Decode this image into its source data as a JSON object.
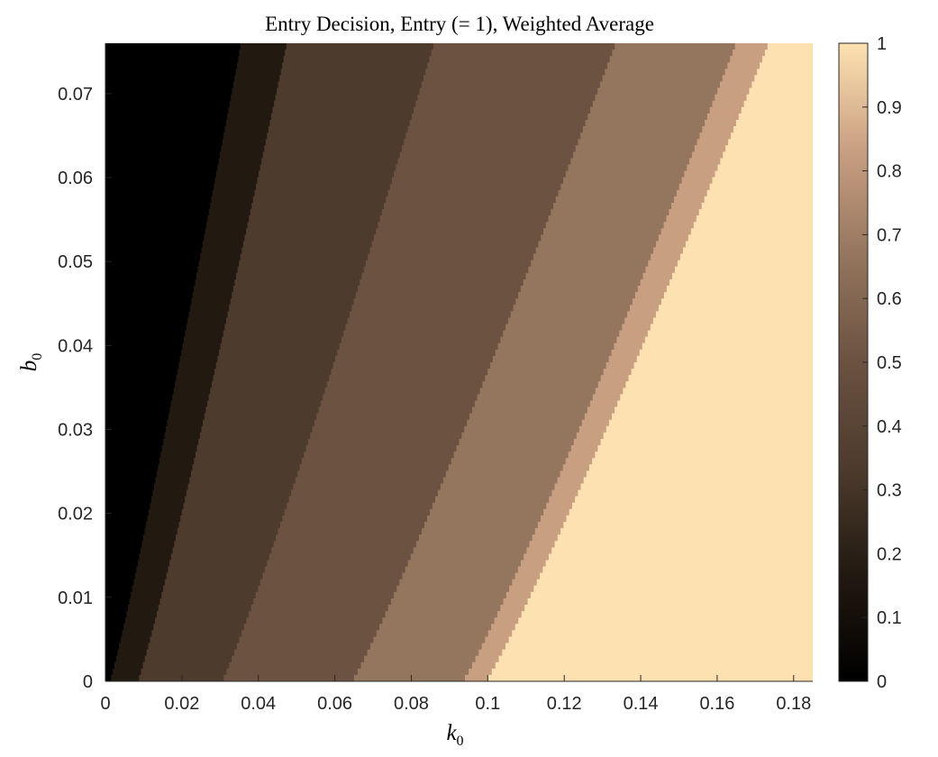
{
  "chart_data": {
    "type": "heatmap",
    "title": "Entry Decision, Entry (= 1), Weighted Average",
    "xlabel": {
      "base": "k",
      "sub": "0"
    },
    "ylabel": {
      "base": "b",
      "sub": "0"
    },
    "xlim": [
      0,
      0.185
    ],
    "ylim": [
      0,
      0.076
    ],
    "x_ticks": [
      {
        "value": 0,
        "label": "0"
      },
      {
        "value": 0.02,
        "label": "0.02"
      },
      {
        "value": 0.04,
        "label": "0.04"
      },
      {
        "value": 0.06,
        "label": "0.06"
      },
      {
        "value": 0.08,
        "label": "0.08"
      },
      {
        "value": 0.1,
        "label": "0.1"
      },
      {
        "value": 0.12,
        "label": "0.12"
      },
      {
        "value": 0.14,
        "label": "0.14"
      },
      {
        "value": 0.16,
        "label": "0.16"
      },
      {
        "value": 0.18,
        "label": "0.18"
      }
    ],
    "y_ticks": [
      {
        "value": 0,
        "label": "0"
      },
      {
        "value": 0.01,
        "label": "0.01"
      },
      {
        "value": 0.02,
        "label": "0.02"
      },
      {
        "value": 0.03,
        "label": "0.03"
      },
      {
        "value": 0.04,
        "label": "0.04"
      },
      {
        "value": 0.05,
        "label": "0.05"
      },
      {
        "value": 0.06,
        "label": "0.06"
      },
      {
        "value": 0.07,
        "label": "0.07"
      }
    ],
    "colorbar": {
      "range": [
        0,
        1
      ],
      "colors": [
        "#000000",
        "#221911",
        "#4d3b2d",
        "#6b5241",
        "#94755d",
        "#c99f82",
        "#fde1b0"
      ],
      "ticks": [
        {
          "value": 0,
          "label": "0"
        },
        {
          "value": 0.1,
          "label": "0.1"
        },
        {
          "value": 0.2,
          "label": "0.2"
        },
        {
          "value": 0.3,
          "label": "0.3"
        },
        {
          "value": 0.4,
          "label": "0.4"
        },
        {
          "value": 0.5,
          "label": "0.5"
        },
        {
          "value": 0.6,
          "label": "0.6"
        },
        {
          "value": 0.7,
          "label": "0.7"
        },
        {
          "value": 0.8,
          "label": "0.8"
        },
        {
          "value": 0.9,
          "label": "0.9"
        },
        {
          "value": 1,
          "label": "1"
        }
      ]
    },
    "regions": [
      {
        "value": 0.0,
        "color": "#000000",
        "k_at_b0": 0,
        "k_at_bmax": 0
      },
      {
        "value": 0.1,
        "color": "#221911",
        "k_at_b0": 0.0012,
        "k_at_bmax": 0.0355
      },
      {
        "value": 0.25,
        "color": "#4d3b2d",
        "k_at_b0": 0.0085,
        "k_at_bmax": 0.0475
      },
      {
        "value": 0.37,
        "color": "#6b5241",
        "k_at_b0": 0.0305,
        "k_at_bmax": 0.086
      },
      {
        "value": 0.52,
        "color": "#94755d",
        "k_at_b0": 0.0645,
        "k_at_bmax": 0.1335
      },
      {
        "value": 0.7,
        "color": "#c99f82",
        "k_at_b0": 0.0935,
        "k_at_bmax": 0.165
      },
      {
        "value": 1.0,
        "color": "#fde1b0",
        "k_at_b0": 0.0995,
        "k_at_bmax": 0.1735
      }
    ]
  }
}
